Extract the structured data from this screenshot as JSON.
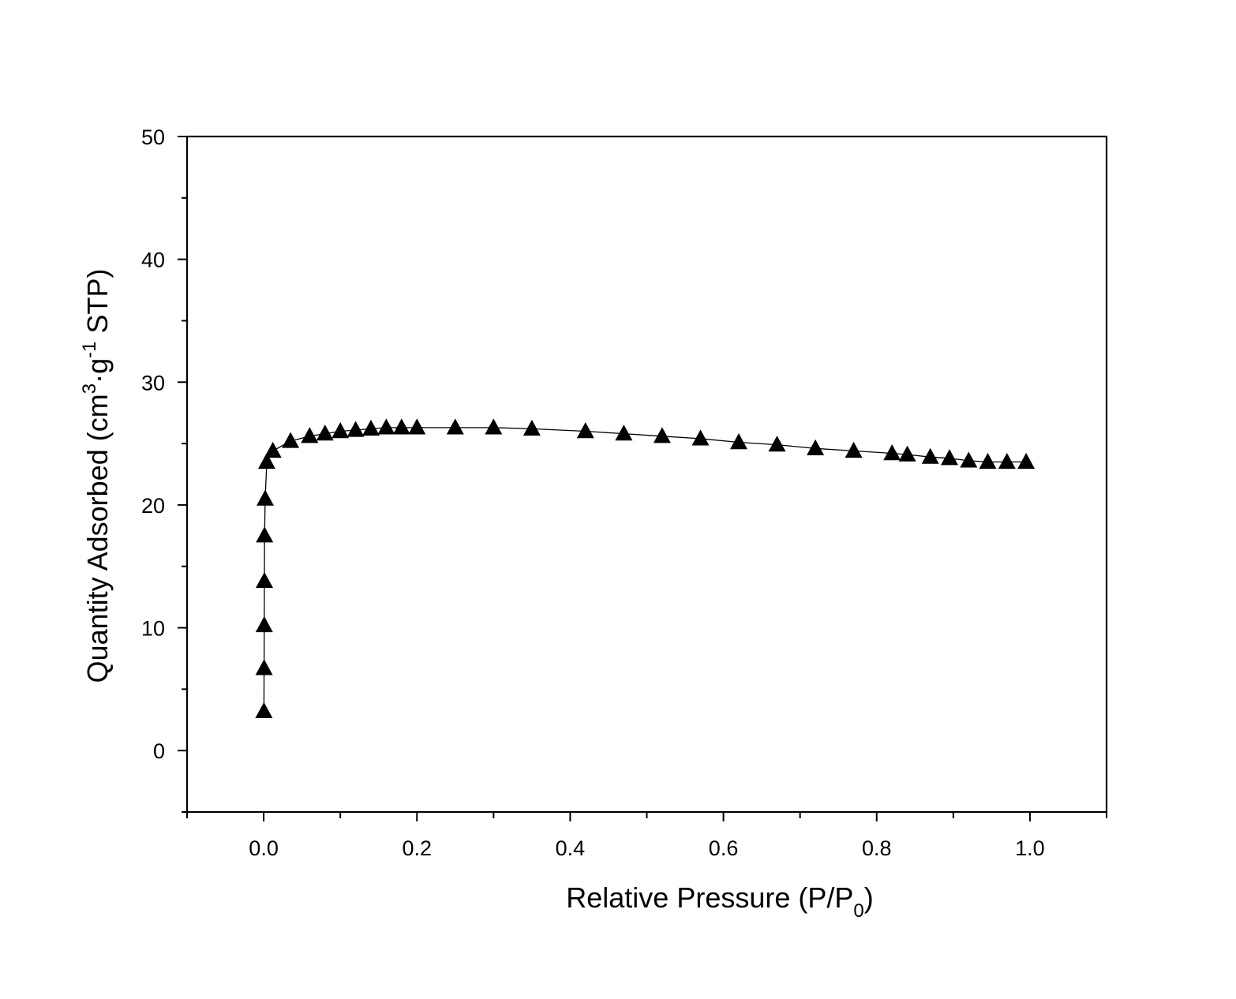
{
  "chart_data": {
    "type": "line",
    "title": "",
    "xlabel": "Relative Pressure (P/P0)",
    "xlabel_parts": {
      "main": "Relative Pressure (P/P",
      "sub": "0",
      "end": ")"
    },
    "ylabel": "Quantity Adsorbed (cm3·g-1 STP)",
    "ylabel_parts": {
      "a": "Quantity Adsorbed (cm",
      "sup1": "3",
      "b": "·g",
      "sup2": "-1",
      "c": " STP)"
    },
    "xlim": [
      -0.1,
      1.1
    ],
    "ylim": [
      -5,
      50
    ],
    "xticks": [
      0.0,
      0.2,
      0.4,
      0.6,
      0.8,
      1.0
    ],
    "xtick_labels": [
      "0.0",
      "0.2",
      "0.4",
      "0.6",
      "0.8",
      "1.0"
    ],
    "xminor": [
      -0.1,
      0.1,
      0.3,
      0.5,
      0.7,
      0.9,
      1.1
    ],
    "yticks": [
      0,
      10,
      20,
      30,
      40,
      50
    ],
    "ytick_labels": [
      "0",
      "10",
      "20",
      "30",
      "40",
      "50"
    ],
    "yminor": [
      -5,
      5,
      15,
      25,
      35,
      45
    ],
    "grid": false,
    "legend": "none",
    "marker": "triangle",
    "color": "#000000",
    "series": [
      {
        "x": [
          0.0003,
          0.0005,
          0.0007,
          0.0009,
          0.0012,
          0.002,
          0.004,
          0.012,
          0.035,
          0.06,
          0.08,
          0.1,
          0.12,
          0.14,
          0.16,
          0.18,
          0.2,
          0.25,
          0.3,
          0.35,
          0.42,
          0.47,
          0.52,
          0.57,
          0.62,
          0.67,
          0.72,
          0.77,
          0.82,
          0.84,
          0.87,
          0.895,
          0.92,
          0.945,
          0.97,
          0.995
        ],
        "y": [
          3.2,
          6.7,
          10.2,
          13.8,
          17.5,
          20.5,
          23.5,
          24.4,
          25.2,
          25.6,
          25.8,
          26.0,
          26.1,
          26.2,
          26.3,
          26.3,
          26.3,
          26.3,
          26.3,
          26.2,
          26.0,
          25.8,
          25.6,
          25.4,
          25.1,
          24.9,
          24.6,
          24.4,
          24.2,
          24.1,
          23.9,
          23.8,
          23.6,
          23.5,
          23.5,
          23.5
        ]
      }
    ]
  }
}
